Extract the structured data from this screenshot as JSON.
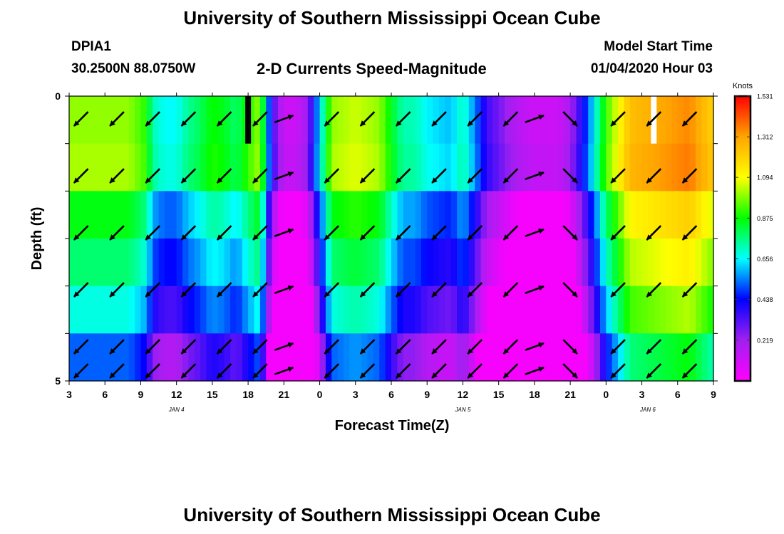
{
  "header": {
    "title": "University of Southern Mississippi Ocean Cube",
    "station_id": "DPIA1",
    "station_coords": "30.2500N 88.0750W",
    "plot_title": "2-D Currents Speed-Magnitude",
    "model_start_label": "Model Start Time",
    "model_start_value": "01/04/2020 Hour 03"
  },
  "footer": {
    "title": "University of Southern Mississippi Ocean Cube"
  },
  "chart_data": {
    "type": "heatmap",
    "xlabel": "Forecast Time(Z)",
    "ylabel": "Depth (ft)",
    "colorbar_unit": "Knots",
    "colorbar_ticks": [
      1.531,
      1.312,
      1.094,
      0.875,
      0.656,
      0.438,
      0.219
    ],
    "colorbar_range": [
      0,
      1.531
    ],
    "colors": [
      "#ff00ff",
      "#a020f0",
      "#0000ff",
      "#00ffff",
      "#00ff00",
      "#ffff00",
      "#ffa500",
      "#ff0000"
    ],
    "x_tick_labels": [
      "3",
      "6",
      "9",
      "12",
      "15",
      "18",
      "21",
      "0",
      "3",
      "6",
      "9",
      "12",
      "15",
      "18",
      "21",
      "0",
      "3",
      "6",
      "9"
    ],
    "date_labels": [
      "JAN 4",
      "JAN 5",
      "JAN 6"
    ],
    "y_tick_labels": [
      "0",
      "5"
    ],
    "x_hours": [
      3,
      57
    ],
    "depth_range": [
      0,
      5
    ],
    "missing_columns_hour": [
      {
        "hour": 18,
        "rows": [
          0
        ],
        "color": "#000000"
      },
      {
        "hour": 52,
        "rows": [
          0
        ],
        "color": "#ffffff"
      }
    ],
    "speed_profile_top_row": [
      [
        3,
        1.0
      ],
      [
        5,
        1.0
      ],
      [
        8,
        1.0
      ],
      [
        9.5,
        0.9
      ],
      [
        10,
        0.72
      ],
      [
        11,
        0.66
      ],
      [
        12,
        0.66
      ],
      [
        13,
        0.75
      ],
      [
        14,
        0.8
      ],
      [
        15,
        0.88
      ],
      [
        16,
        0.85
      ],
      [
        17,
        0.78
      ],
      [
        18,
        0.9
      ],
      [
        19,
        1.0
      ],
      [
        19.6,
        0.6
      ],
      [
        20,
        0.35
      ],
      [
        21,
        0.12
      ],
      [
        22,
        0.12
      ],
      [
        23,
        0.22
      ],
      [
        23.5,
        0.45
      ],
      [
        24,
        0.62
      ],
      [
        25,
        1.0
      ],
      [
        27,
        1.05
      ],
      [
        29,
        1.0
      ],
      [
        30,
        0.85
      ],
      [
        31,
        0.72
      ],
      [
        32,
        0.72
      ],
      [
        33,
        0.65
      ],
      [
        35,
        0.6
      ],
      [
        36,
        0.72
      ],
      [
        37,
        0.55
      ],
      [
        38,
        0.35
      ],
      [
        39,
        0.28
      ],
      [
        40,
        0.2
      ],
      [
        41,
        0.15
      ],
      [
        42,
        0.12
      ],
      [
        44,
        0.12
      ],
      [
        45,
        0.2
      ],
      [
        46,
        0.4
      ],
      [
        47,
        0.65
      ],
      [
        48,
        0.92
      ],
      [
        50,
        1.25
      ],
      [
        53,
        1.31
      ],
      [
        55,
        1.35
      ],
      [
        57,
        1.2
      ]
    ],
    "row_speed_offsets": [
      0,
      0.02,
      -0.14,
      -0.22,
      -0.32,
      -0.48
    ],
    "arrows": {
      "rows_depth_ft": [
        0.25,
        1.25,
        2.25,
        3.25,
        4.25,
        5
      ],
      "columns_hour": [
        4,
        7,
        10,
        13,
        16,
        19,
        21,
        25,
        28,
        31,
        34,
        37,
        40,
        42,
        45,
        49,
        52,
        55
      ],
      "direction_deg_by_column": [
        135,
        135,
        135,
        135,
        135,
        135,
        -20,
        135,
        135,
        135,
        135,
        135,
        135,
        -20,
        45,
        135,
        135,
        135
      ]
    }
  }
}
